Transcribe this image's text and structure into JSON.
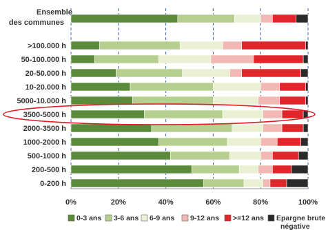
{
  "chart_data": {
    "type": "bar",
    "orientation": "horizontal",
    "stacked": true,
    "title": "",
    "xlabel": "",
    "ylabel": "",
    "xlim": [
      0,
      100
    ],
    "x_ticks": [
      "0%",
      "20%",
      "40%",
      "60%",
      "80%",
      "100%"
    ],
    "grid": "vertical dashed",
    "legend_position": "bottom",
    "categories": [
      "Ensemble des communes",
      ">100.000 h",
      "50-100.000 h",
      "20-50.000 h",
      "10-20.000 h",
      "5000-10.000 h",
      "3500-5000 h",
      "2000-3500 h",
      "1000-2000 h",
      "500-1000 h",
      "200-500 h",
      "0-200 h"
    ],
    "highlighted_category": "3500-5000 h",
    "series": [
      {
        "name": "0-3 ans",
        "color": "#5b8a3a",
        "values": [
          45,
          12,
          10,
          19,
          25,
          26,
          31,
          34,
          37,
          42,
          51,
          56
        ]
      },
      {
        "name": "3-6 ans",
        "color": "#b6cf8e",
        "values": [
          24,
          34,
          27,
          28,
          35,
          34,
          33,
          34,
          29,
          25,
          20,
          17
        ]
      },
      {
        "name": "6-9 ans",
        "color": "#e9f0d4",
        "values": [
          11,
          18,
          22,
          20,
          20,
          19,
          17,
          13,
          14,
          13,
          8,
          8
        ]
      },
      {
        "name": "9-12 ans",
        "color": "#f2b8b4",
        "values": [
          5,
          8,
          18,
          5,
          8,
          9,
          8,
          8,
          7,
          5,
          6,
          3
        ]
      },
      {
        "name": ">=12 ans",
        "color": "#e0262a",
        "values": [
          10,
          27,
          21,
          25,
          11,
          11,
          9,
          9,
          10,
          11,
          8,
          7
        ]
      },
      {
        "name": "Epargne brute négative",
        "color": "#2b2b2b",
        "values": [
          5,
          1,
          2,
          3,
          1,
          1,
          2,
          2,
          3,
          4,
          7,
          9
        ]
      }
    ]
  }
}
